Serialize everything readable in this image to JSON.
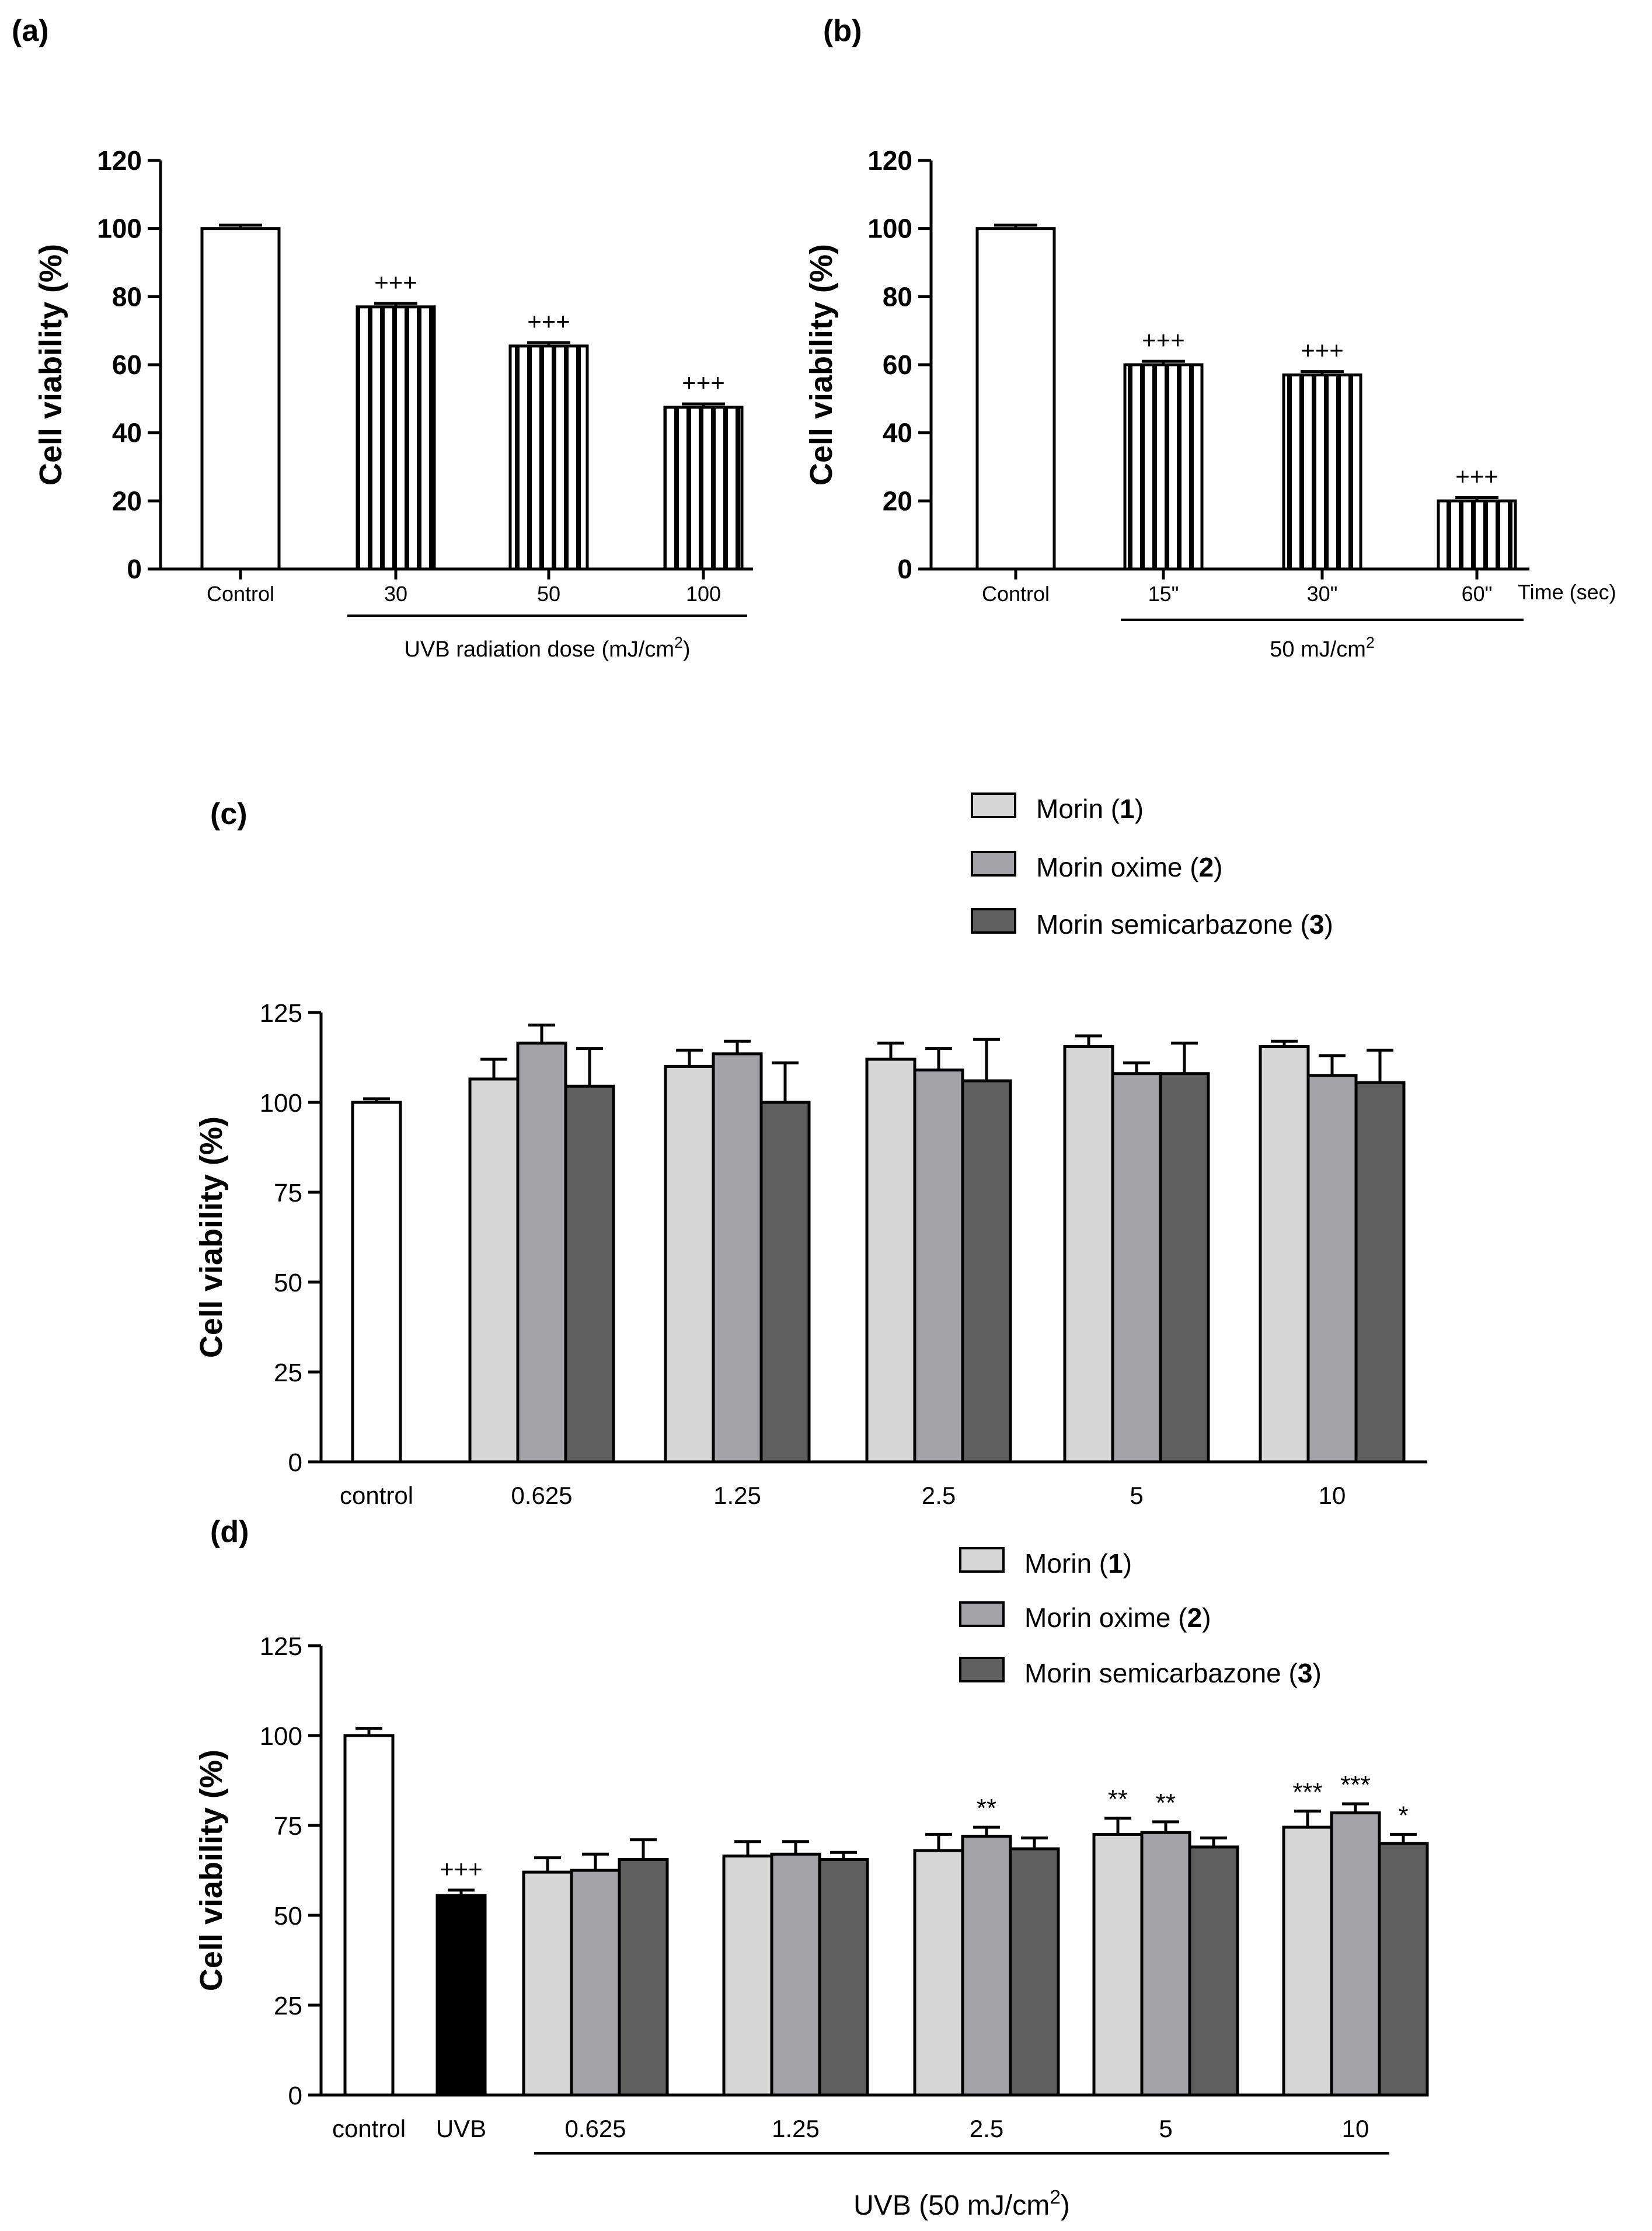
{
  "colors": {
    "white": "#ffffff",
    "light": "#d6d6d6",
    "mid": "#a3a3a7",
    "dark": "#5f5f5f",
    "black": "#000000"
  },
  "chart_data": [
    {
      "id": "a",
      "panel_label": "(a)",
      "type": "bar",
      "ylabel": "Cell viability (%)",
      "ylim": [
        0,
        120
      ],
      "yticks": [
        0,
        20,
        40,
        60,
        80,
        100,
        120
      ],
      "categories": [
        "Control",
        "30",
        "50",
        "100"
      ],
      "values": [
        100,
        77,
        65.5,
        47.5
      ],
      "errors": [
        1,
        1,
        1,
        1
      ],
      "fills": [
        "white",
        "hatch",
        "hatch",
        "hatch"
      ],
      "annotations": [
        "",
        "+++",
        "+++",
        "+++"
      ],
      "group_label": "UVB radiation dose (mJ/cm",
      "group_label_sup": "2",
      "group_label_tail": ")"
    },
    {
      "id": "b",
      "panel_label": "(b)",
      "type": "bar",
      "ylabel": "Cell viability (%)",
      "ylim": [
        0,
        120
      ],
      "yticks": [
        0,
        20,
        40,
        60,
        80,
        100,
        120
      ],
      "categories": [
        "Control",
        "15\"",
        "30\"",
        "60\""
      ],
      "values": [
        100,
        60,
        57,
        20
      ],
      "errors": [
        1,
        1,
        1,
        1
      ],
      "fills": [
        "white",
        "hatch",
        "hatch",
        "hatch"
      ],
      "annotations": [
        "",
        "+++",
        "+++",
        "+++"
      ],
      "xunit_label": "Time (sec)",
      "group_label": "50 mJ/cm",
      "group_label_sup": "2",
      "group_label_tail": ""
    },
    {
      "id": "c",
      "panel_label": "(c)",
      "type": "bar",
      "ylabel": "Cell viability (%)",
      "ylim": [
        0,
        125
      ],
      "yticks": [
        0,
        25,
        50,
        75,
        100,
        125
      ],
      "control": {
        "label": "control",
        "value": 100,
        "error": 1
      },
      "categories": [
        "0.625",
        "1.25",
        "2.5",
        "5",
        "10"
      ],
      "series": [
        {
          "name": "Morin",
          "num": "1",
          "color": "light",
          "values": [
            106.5,
            110,
            112,
            115.5,
            115.5
          ],
          "errors": [
            5.5,
            4.5,
            4.5,
            3,
            1.5
          ]
        },
        {
          "name": "Morin oxime",
          "num": "2",
          "color": "mid",
          "values": [
            116.5,
            113.5,
            109,
            108,
            107.5
          ],
          "errors": [
            5,
            3.5,
            6,
            3,
            5.5
          ]
        },
        {
          "name": "Morin semicarbazone",
          "num": "3",
          "color": "dark",
          "values": [
            104.5,
            100,
            106,
            108,
            105.5
          ],
          "errors": [
            10.5,
            11,
            11.5,
            8.5,
            9
          ]
        }
      ],
      "annotations": []
    },
    {
      "id": "d",
      "panel_label": "(d)",
      "type": "bar",
      "ylabel": "Cell viability (%)",
      "ylim": [
        0,
        125
      ],
      "yticks": [
        0,
        25,
        50,
        75,
        100,
        125
      ],
      "control": {
        "label": "control",
        "value": 100,
        "error": 2
      },
      "uvb": {
        "label": "UVB",
        "value": 55.5,
        "error": 1.5,
        "annotation": "+++"
      },
      "categories": [
        "0.625",
        "1.25",
        "2.5",
        "5",
        "10"
      ],
      "series": [
        {
          "name": "Morin",
          "num": "1",
          "color": "light",
          "values": [
            62,
            66.5,
            68,
            72.5,
            74.5
          ],
          "errors": [
            4,
            4,
            4.5,
            4.5,
            4.5
          ],
          "annotations": [
            "",
            "",
            "",
            "**",
            "***"
          ]
        },
        {
          "name": "Morin oxime",
          "num": "2",
          "color": "mid",
          "values": [
            62.5,
            67,
            72,
            73,
            78.5
          ],
          "errors": [
            4.5,
            3.5,
            2.5,
            3,
            2.5
          ],
          "annotations": [
            "",
            "",
            "**",
            "**",
            "***"
          ]
        },
        {
          "name": "Morin semicarbazone",
          "num": "3",
          "color": "dark",
          "values": [
            65.5,
            65.5,
            68.5,
            69,
            70
          ],
          "errors": [
            5.5,
            2,
            3,
            2.5,
            2.5
          ],
          "annotations": [
            "",
            "",
            "",
            "",
            "*"
          ]
        }
      ],
      "group_label": "UVB (50 mJ/cm",
      "group_label_sup": "2",
      "group_label_tail": ")"
    }
  ]
}
